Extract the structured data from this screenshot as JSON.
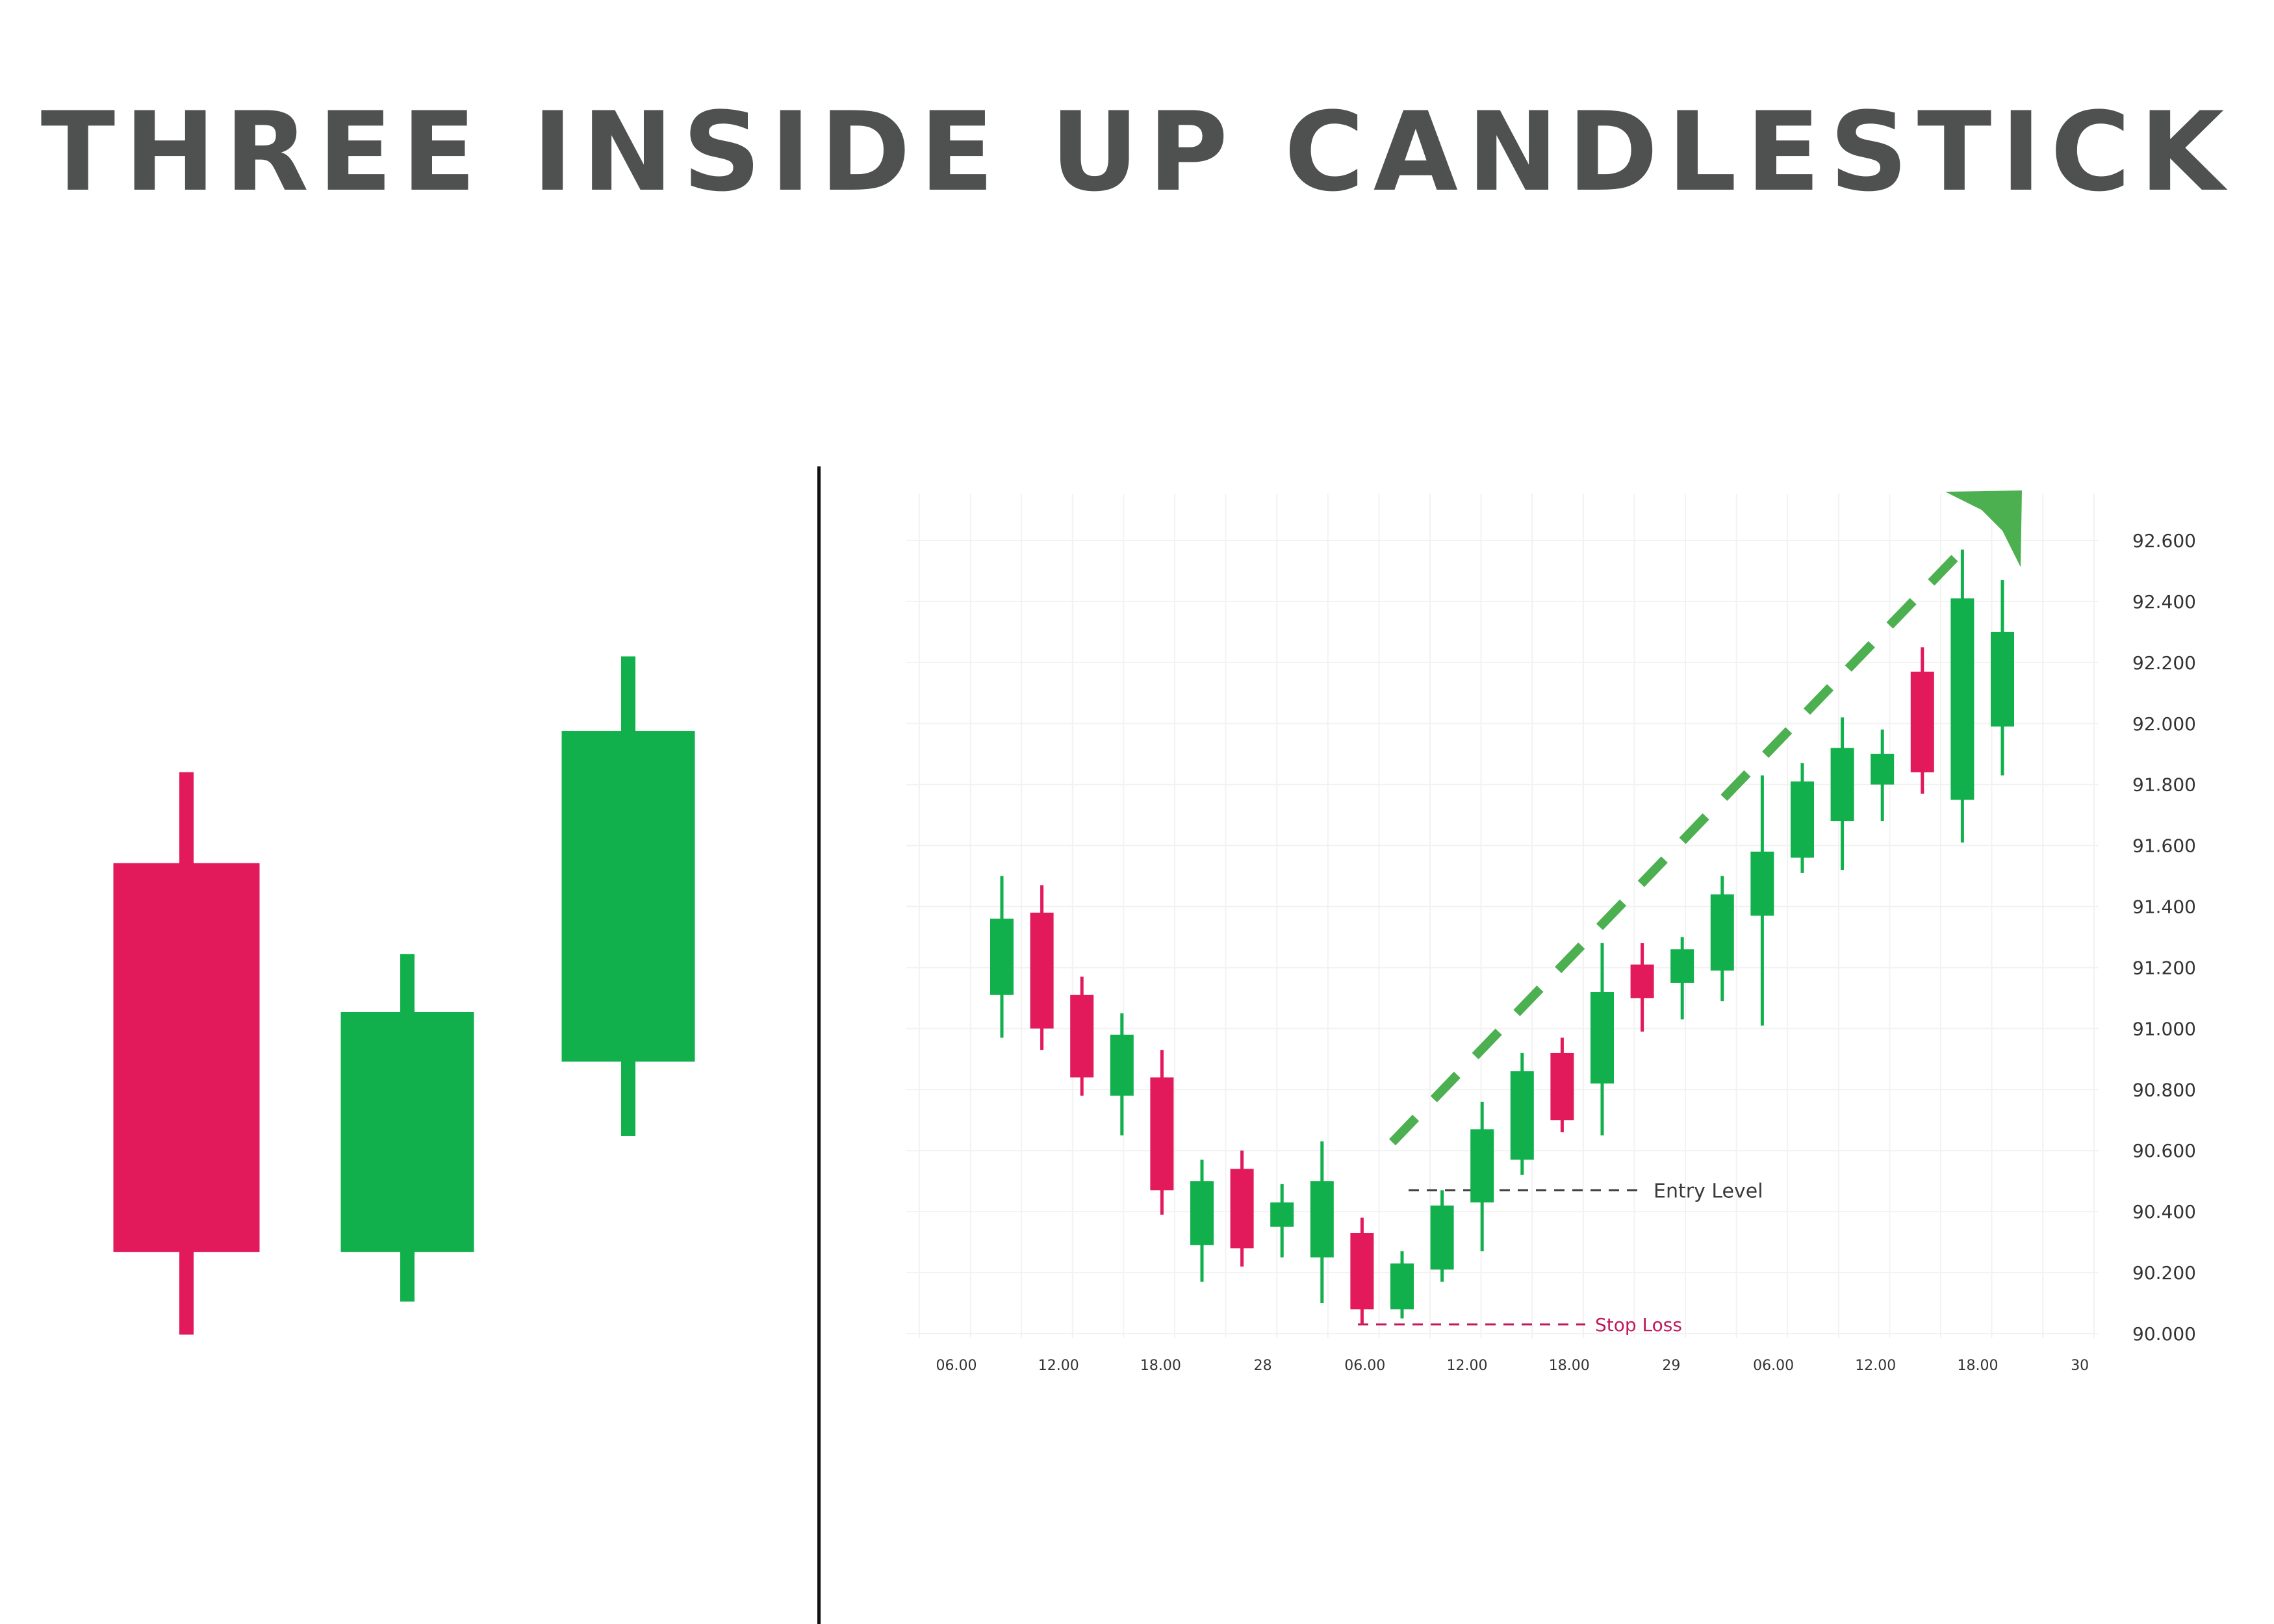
{
  "title": "THREE INSIDE UP CANDLESTICK",
  "colors": {
    "bullish": "#12b04c",
    "bearish": "#e2195b",
    "title": "#4f5150",
    "grid": "#f2f2f2",
    "trend_arrow": "#4caf50",
    "entry_line": "#3a3a3a",
    "stop_line": "#c2185b"
  },
  "chart_data": [
    {
      "type": "candlestick",
      "title": "",
      "candles": [
        {
          "direction": "bearish",
          "open": 4.7,
          "close": 0.0,
          "high": 5.8,
          "low": -1.0
        },
        {
          "direction": "bullish",
          "open": 0.0,
          "close": 2.9,
          "high": 3.6,
          "low": -0.6
        },
        {
          "direction": "bullish",
          "open": 2.3,
          "close": 6.3,
          "high": 7.2,
          "low": 1.4
        }
      ],
      "ylim": [
        -1.2,
        7.4
      ]
    },
    {
      "type": "candlestick",
      "title": "",
      "y_ticks": [
        "92.600",
        "92.400",
        "92.200",
        "92.000",
        "91.800",
        "91.600",
        "91.400",
        "91.200",
        "91.000",
        "90.800",
        "90.600",
        "90.400",
        "90.200",
        "90.000"
      ],
      "x_ticks": [
        "06.00",
        "12.00",
        "18.00",
        "28",
        "06.00",
        "12.00",
        "18.00",
        "29",
        "06.00",
        "12.00",
        "18.00",
        "30"
      ],
      "ylim": [
        90.0,
        92.6
      ],
      "candles": [
        {
          "direction": "bullish",
          "open": 91.11,
          "close": 91.36,
          "high": 91.5,
          "low": 90.97
        },
        {
          "direction": "bearish",
          "open": 91.38,
          "close": 91.0,
          "high": 91.47,
          "low": 90.93
        },
        {
          "direction": "bearish",
          "open": 91.11,
          "close": 90.84,
          "high": 91.17,
          "low": 90.78
        },
        {
          "direction": "bullish",
          "open": 90.78,
          "close": 90.98,
          "high": 91.05,
          "low": 90.65
        },
        {
          "direction": "bearish",
          "open": 90.84,
          "close": 90.47,
          "high": 90.93,
          "low": 90.39
        },
        {
          "direction": "bullish",
          "open": 90.29,
          "close": 90.5,
          "high": 90.57,
          "low": 90.17
        },
        {
          "direction": "bearish",
          "open": 90.54,
          "close": 90.28,
          "high": 90.6,
          "low": 90.22
        },
        {
          "direction": "bullish",
          "open": 90.35,
          "close": 90.43,
          "high": 90.49,
          "low": 90.25
        },
        {
          "direction": "bullish",
          "open": 90.25,
          "close": 90.5,
          "high": 90.63,
          "low": 90.1
        },
        {
          "direction": "bearish",
          "open": 90.33,
          "close": 90.08,
          "high": 90.38,
          "low": 90.03
        },
        {
          "direction": "bullish",
          "open": 90.08,
          "close": 90.23,
          "high": 90.27,
          "low": 90.05
        },
        {
          "direction": "bullish",
          "open": 90.21,
          "close": 90.42,
          "high": 90.47,
          "low": 90.17
        },
        {
          "direction": "bullish",
          "open": 90.43,
          "close": 90.67,
          "high": 90.76,
          "low": 90.27
        },
        {
          "direction": "bullish",
          "open": 90.57,
          "close": 90.86,
          "high": 90.92,
          "low": 90.52
        },
        {
          "direction": "bearish",
          "open": 90.92,
          "close": 90.7,
          "high": 90.97,
          "low": 90.66
        },
        {
          "direction": "bullish",
          "open": 90.82,
          "close": 91.12,
          "high": 91.28,
          "low": 90.65
        },
        {
          "direction": "bearish",
          "open": 91.21,
          "close": 91.1,
          "high": 91.28,
          "low": 90.99
        },
        {
          "direction": "bullish",
          "open": 91.15,
          "close": 91.26,
          "high": 91.3,
          "low": 91.03
        },
        {
          "direction": "bullish",
          "open": 91.19,
          "close": 91.44,
          "high": 91.5,
          "low": 91.09
        },
        {
          "direction": "bullish",
          "open": 91.37,
          "close": 91.58,
          "high": 91.83,
          "low": 91.01
        },
        {
          "direction": "bullish",
          "open": 91.56,
          "close": 91.81,
          "high": 91.87,
          "low": 91.51
        },
        {
          "direction": "bullish",
          "open": 91.68,
          "close": 91.92,
          "high": 92.02,
          "low": 91.52
        },
        {
          "direction": "bullish",
          "open": 91.8,
          "close": 91.9,
          "high": 91.98,
          "low": 91.68
        },
        {
          "direction": "bearish",
          "open": 92.17,
          "close": 91.84,
          "high": 92.25,
          "low": 91.77
        },
        {
          "direction": "bullish",
          "open": 91.75,
          "close": 92.41,
          "high": 92.57,
          "low": 91.61
        },
        {
          "direction": "bullish",
          "open": 91.99,
          "close": 92.3,
          "high": 92.47,
          "low": 91.83
        }
      ],
      "annotations": [
        {
          "label": "Entry Level",
          "value": 90.47
        },
        {
          "label": "Stop Loss",
          "value": 90.03
        }
      ],
      "trend": {
        "direction": "up",
        "from": {
          "candle": 10,
          "value": 90.67
        },
        "to": {
          "candle": 25,
          "value": 92.7
        }
      }
    }
  ]
}
